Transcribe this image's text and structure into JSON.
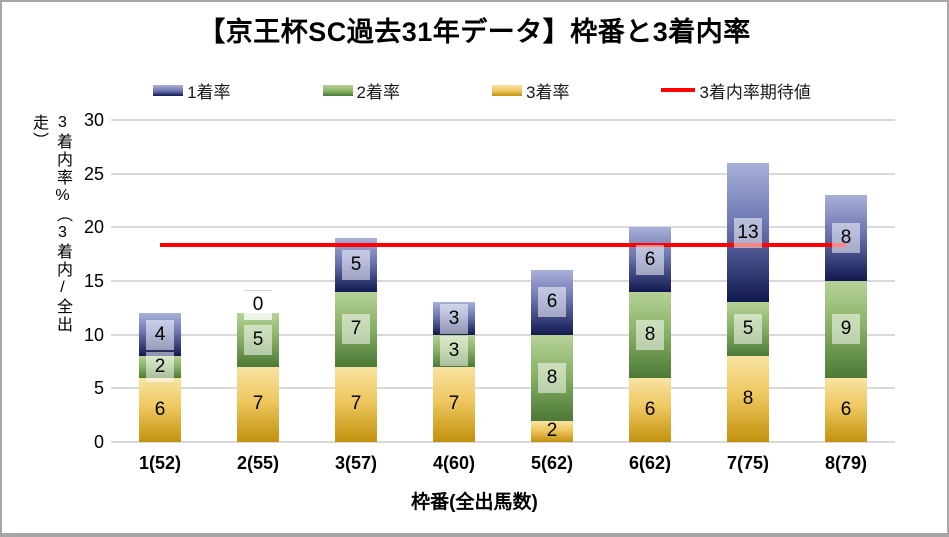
{
  "chart_data": {
    "type": "bar",
    "stacked": true,
    "title": "【京王杯SC過去31年データ】枠番と3着内率",
    "xlabel": "枠番(全出馬数)",
    "ylabel": "3着内率%（3着内/全出走）",
    "ylim": [
      0,
      30
    ],
    "yticks": [
      0,
      5,
      10,
      15,
      20,
      25,
      30
    ],
    "grid": true,
    "legend_position": "top",
    "categories": [
      "1(52)",
      "2(55)",
      "3(57)",
      "4(60)",
      "5(62)",
      "6(62)",
      "7(75)",
      "8(79)"
    ],
    "series": [
      {
        "name": "1着率",
        "values": [
          4,
          0,
          5,
          3,
          6,
          6,
          13,
          8
        ],
        "color_top": "#a9b0d8",
        "color_mid": "#6a74b0",
        "color_bottom": "#121950",
        "label_style": "boxed"
      },
      {
        "name": "2着率",
        "values": [
          2,
          5,
          7,
          3,
          8,
          8,
          5,
          9
        ],
        "color_top": "#b5d297",
        "color_mid": "#8bb267",
        "color_bottom": "#4c7936",
        "label_style": "boxed"
      },
      {
        "name": "3着率",
        "values": [
          6,
          7,
          7,
          7,
          2,
          6,
          8,
          6
        ],
        "color_top": "#f8e3a2",
        "color_mid": "#eec75f",
        "color_bottom": "#c2910d",
        "label_style": "plain"
      }
    ],
    "stack_order_bottom_to_top": [
      "3着率",
      "2着率",
      "1着率"
    ],
    "expected_line": {
      "name": "3着内率期待値",
      "value": 18.4,
      "color": "#ff0000"
    },
    "gridline_color": "#d9d9d9"
  }
}
